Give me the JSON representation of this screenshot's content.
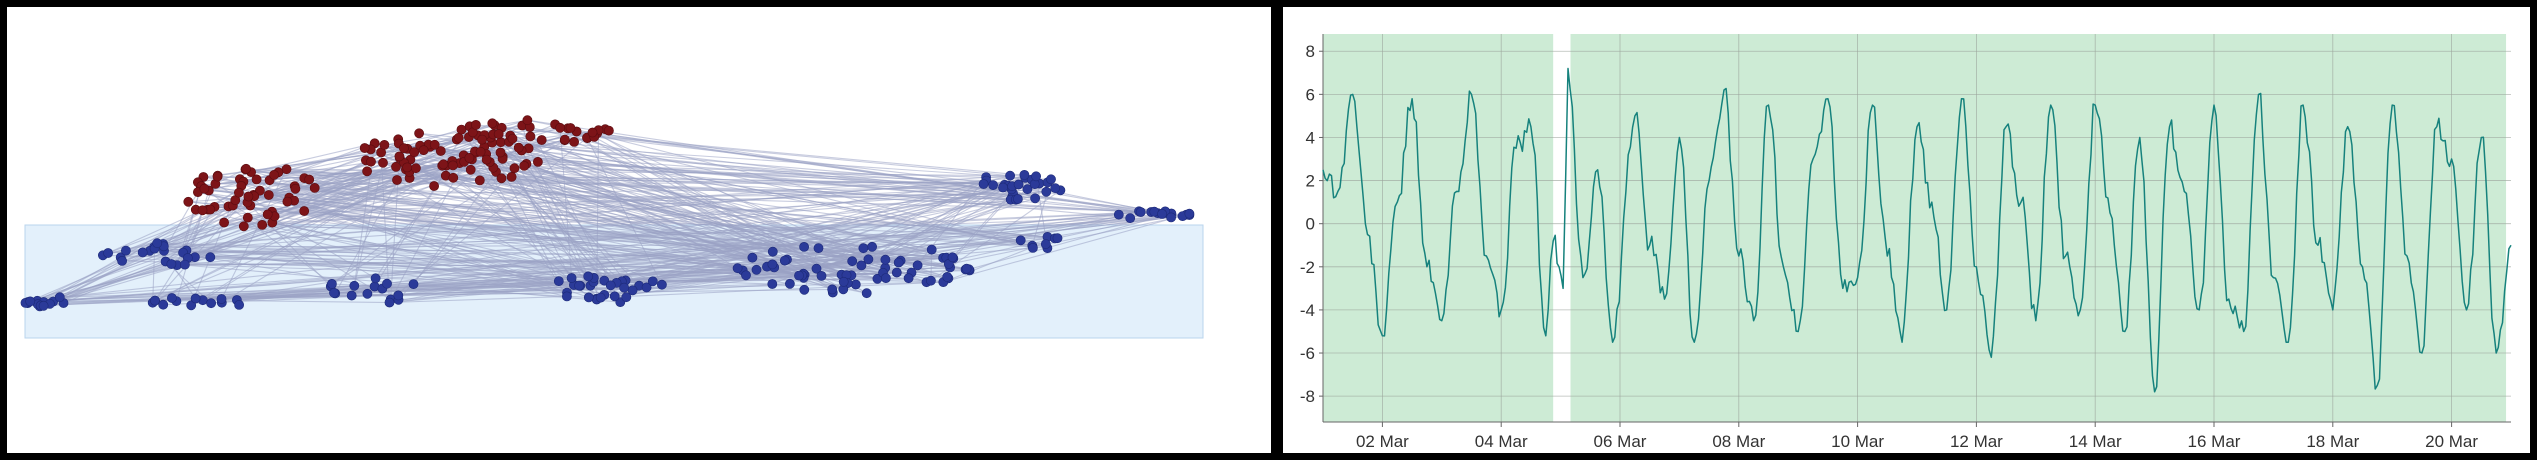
{
  "colors": {
    "background": "#000000",
    "panel": "#ffffff",
    "selection_fill": "#e3f0fb",
    "selection_stroke": "#b9d4ee",
    "edge": "#9aa3c4",
    "node_selected": "#7d1418",
    "node_unselected": "#2b3a99",
    "band_fill": "#cdebd5",
    "grid": "#9aa39a",
    "series": "#16827d"
  },
  "graph_view": {
    "selected_cluster_label": "",
    "unselected_cluster_label": ""
  },
  "chart_data": {
    "type": "line",
    "title": "",
    "xlabel": "",
    "ylabel": "",
    "x_range": [
      "2023-03-01",
      "2023-03-21"
    ],
    "ylim": [
      -9.2,
      8.8
    ],
    "y_ticks": [
      8,
      6,
      4,
      2,
      0,
      -2,
      -4,
      -6,
      -8
    ],
    "x_ticks": [
      {
        "date": "2023-03-02",
        "label": "02 Mar"
      },
      {
        "date": "2023-03-04",
        "label": "04 Mar"
      },
      {
        "date": "2023-03-06",
        "label": "06 Mar"
      },
      {
        "date": "2023-03-08",
        "label": "08 Mar"
      },
      {
        "date": "2023-03-10",
        "label": "10 Mar"
      },
      {
        "date": "2023-03-12",
        "label": "12 Mar"
      },
      {
        "date": "2023-03-14",
        "label": "14 Mar"
      },
      {
        "date": "2023-03-16",
        "label": "16 Mar"
      },
      {
        "date": "2023-03-18",
        "label": "18 Mar"
      },
      {
        "date": "2023-03-20",
        "label": "20 Mar"
      }
    ],
    "grid": true,
    "highlight_bands": [
      [
        "2023-03-01",
        "2023-03-04 21:00"
      ],
      [
        "2023-03-05 04:00",
        "2023-03-20 22:00"
      ]
    ],
    "series": [
      {
        "values": [
          [
            "2023-03-01 00:00",
            2.5
          ],
          [
            "2023-03-01 06:00",
            1.5
          ],
          [
            "2023-03-01 12:00",
            6.0
          ],
          [
            "2023-03-01 18:00",
            -0.5
          ],
          [
            "2023-03-02 00:00",
            -5.2
          ],
          [
            "2023-03-02 06:00",
            1.0
          ],
          [
            "2023-03-02 12:00",
            5.8
          ],
          [
            "2023-03-02 18:00",
            -2.0
          ],
          [
            "2023-03-03 00:00",
            -4.5
          ],
          [
            "2023-03-03 06:00",
            1.5
          ],
          [
            "2023-03-03 12:00",
            6.0
          ],
          [
            "2023-03-03 18:00",
            -1.5
          ],
          [
            "2023-03-04 00:00",
            -4.0
          ],
          [
            "2023-03-04 06:00",
            3.5
          ],
          [
            "2023-03-04 12:00",
            4.5
          ],
          [
            "2023-03-04 18:00",
            -5.2
          ],
          [
            "2023-03-04 21:00",
            -0.8
          ],
          [
            "2023-03-05 01:00",
            -3.0
          ],
          [
            "2023-03-05 03:00",
            7.2
          ],
          [
            "2023-03-05 09:00",
            -2.5
          ],
          [
            "2023-03-05 15:00",
            2.5
          ],
          [
            "2023-03-05 21:00",
            -5.5
          ],
          [
            "2023-03-06 06:00",
            5.0
          ],
          [
            "2023-03-06 12:00",
            -1.0
          ],
          [
            "2023-03-06 18:00",
            -3.5
          ],
          [
            "2023-03-07 00:00",
            4.0
          ],
          [
            "2023-03-07 06:00",
            -5.5
          ],
          [
            "2023-03-07 12:00",
            2.0
          ],
          [
            "2023-03-07 18:00",
            6.2
          ],
          [
            "2023-03-08 00:00",
            -1.5
          ],
          [
            "2023-03-08 06:00",
            -4.5
          ],
          [
            "2023-03-08 12:00",
            5.5
          ],
          [
            "2023-03-08 18:00",
            -2.0
          ],
          [
            "2023-03-09 00:00",
            -5.0
          ],
          [
            "2023-03-09 06:00",
            3.0
          ],
          [
            "2023-03-09 12:00",
            5.8
          ],
          [
            "2023-03-09 18:00",
            -3.0
          ],
          [
            "2023-03-10 00:00",
            -2.5
          ],
          [
            "2023-03-10 06:00",
            5.5
          ],
          [
            "2023-03-10 12:00",
            -1.5
          ],
          [
            "2023-03-10 18:00",
            -5.5
          ],
          [
            "2023-03-11 00:00",
            4.5
          ],
          [
            "2023-03-11 06:00",
            1.0
          ],
          [
            "2023-03-11 12:00",
            -4.0
          ],
          [
            "2023-03-11 18:00",
            5.8
          ],
          [
            "2023-03-12 00:00",
            -2.0
          ],
          [
            "2023-03-12 06:00",
            -6.2
          ],
          [
            "2023-03-12 12:00",
            4.5
          ],
          [
            "2023-03-12 18:00",
            1.0
          ],
          [
            "2023-03-13 00:00",
            -4.5
          ],
          [
            "2023-03-13 06:00",
            5.5
          ],
          [
            "2023-03-13 12:00",
            -1.5
          ],
          [
            "2023-03-13 18:00",
            -4.0
          ],
          [
            "2023-03-14 00:00",
            5.5
          ],
          [
            "2023-03-14 06:00",
            0.5
          ],
          [
            "2023-03-14 12:00",
            -5.0
          ],
          [
            "2023-03-14 18:00",
            4.0
          ],
          [
            "2023-03-15 00:00",
            -7.8
          ],
          [
            "2023-03-15 06:00",
            4.5
          ],
          [
            "2023-03-15 12:00",
            1.5
          ],
          [
            "2023-03-15 18:00",
            -4.0
          ],
          [
            "2023-03-16 00:00",
            5.5
          ],
          [
            "2023-03-16 06:00",
            -3.5
          ],
          [
            "2023-03-16 12:00",
            -5.0
          ],
          [
            "2023-03-16 18:00",
            6.0
          ],
          [
            "2023-03-17 00:00",
            -2.5
          ],
          [
            "2023-03-17 06:00",
            -5.5
          ],
          [
            "2023-03-17 12:00",
            5.5
          ],
          [
            "2023-03-17 18:00",
            -1.0
          ],
          [
            "2023-03-18 00:00",
            -4.0
          ],
          [
            "2023-03-18 06:00",
            4.5
          ],
          [
            "2023-03-18 12:00",
            -2.0
          ],
          [
            "2023-03-18 18:00",
            -7.5
          ],
          [
            "2023-03-19 00:00",
            5.5
          ],
          [
            "2023-03-19 06:00",
            -1.5
          ],
          [
            "2023-03-19 12:00",
            -6.0
          ],
          [
            "2023-03-19 18:00",
            4.5
          ],
          [
            "2023-03-20 00:00",
            3.0
          ],
          [
            "2023-03-20 06:00",
            -4.0
          ],
          [
            "2023-03-20 12:00",
            4.0
          ],
          [
            "2023-03-20 18:00",
            -6.0
          ],
          [
            "2023-03-21 00:00",
            -1.0
          ]
        ]
      }
    ]
  }
}
